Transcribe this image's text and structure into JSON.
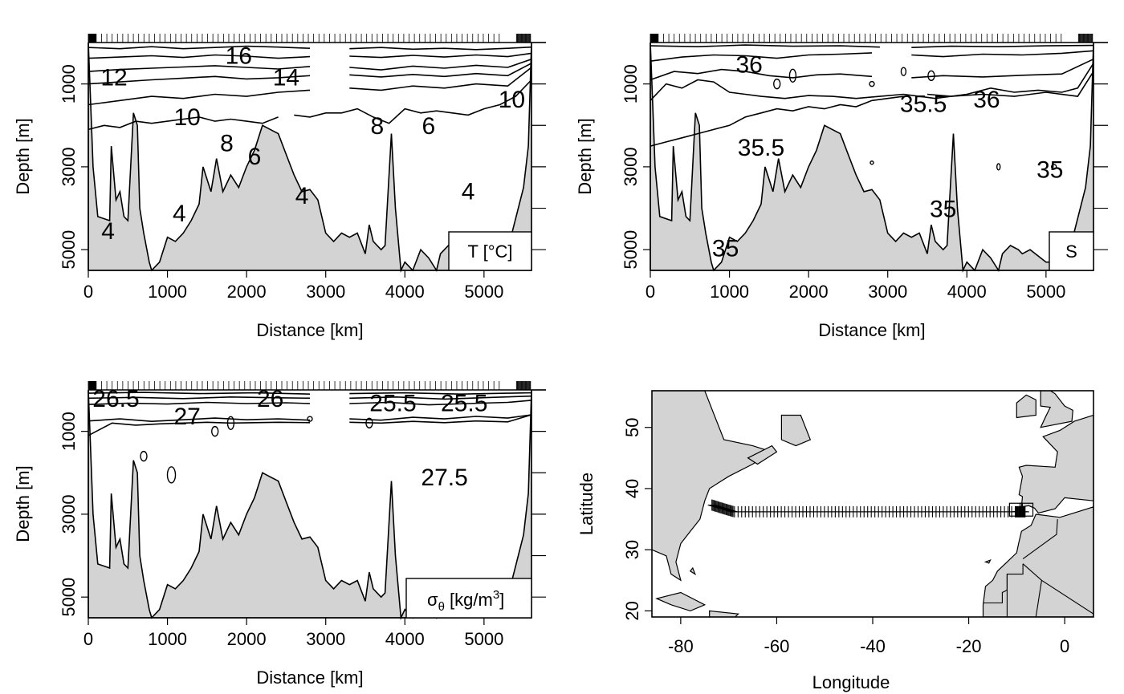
{
  "chart_data": [
    {
      "id": "temperature",
      "type": "contour-section",
      "xlabel": "Distance [km]",
      "ylabel": "Depth [m]",
      "xlim": [
        0,
        5600
      ],
      "ylim": [
        5500,
        0
      ],
      "x_ticks": [
        0,
        1000,
        2000,
        3000,
        4000,
        5000
      ],
      "y_ticks": [
        1000,
        3000,
        5000
      ],
      "legend": "T [°C]",
      "contour_labels": [
        {
          "text": "12",
          "x": 650,
          "y": 400
        },
        {
          "text": "16",
          "x": 3800,
          "y": 150
        },
        {
          "text": "14",
          "x": 5000,
          "y": 400
        },
        {
          "text": "10",
          "x": 2500,
          "y": 850
        },
        {
          "text": "8",
          "x": 3500,
          "y": 1150
        },
        {
          "text": "6",
          "x": 4200,
          "y": 1300
        },
        {
          "text": "8",
          "x": 7300,
          "y": 950
        },
        {
          "text": "6",
          "x": 8600,
          "y": 950
        },
        {
          "text": "10",
          "x": 10700,
          "y": 650
        },
        {
          "text": "4",
          "x": 500,
          "y": 2150
        },
        {
          "text": "4",
          "x": 2300,
          "y": 1950
        },
        {
          "text": "4",
          "x": 5400,
          "y": 1750
        },
        {
          "text": "4",
          "x": 9600,
          "y": 1700
        }
      ]
    },
    {
      "id": "salinity",
      "type": "contour-section",
      "xlabel": "Distance [km]",
      "ylabel": "Depth [m]",
      "xlim": [
        0,
        5600
      ],
      "ylim": [
        5500,
        0
      ],
      "x_ticks": [
        0,
        1000,
        2000,
        3000,
        4000,
        5000
      ],
      "y_ticks": [
        1000,
        3000,
        5000
      ],
      "legend": "S",
      "contour_labels": [
        {
          "text": "36",
          "x": 2500,
          "y": 250
        },
        {
          "text": "35.5",
          "x": 6900,
          "y": 700
        },
        {
          "text": "36",
          "x": 8500,
          "y": 650
        },
        {
          "text": "35.5",
          "x": 2800,
          "y": 1200
        },
        {
          "text": "35",
          "x": 10100,
          "y": 1450
        },
        {
          "text": "35",
          "x": 7400,
          "y": 1900
        },
        {
          "text": "35",
          "x": 1900,
          "y": 2350
        }
      ]
    },
    {
      "id": "density",
      "type": "contour-section",
      "xlabel": "Distance [km]",
      "ylabel": "Depth [m]",
      "xlim": [
        0,
        5600
      ],
      "ylim": [
        5500,
        0
      ],
      "x_ticks": [
        0,
        1000,
        2000,
        3000,
        4000,
        5000
      ],
      "y_ticks": [
        1000,
        3000,
        5000
      ],
      "legend_symbol": "σ",
      "legend_subscript": "θ",
      "legend_units": "[kg/m",
      "legend_superscript": "3",
      "legend_close": "]",
      "contour_labels": [
        {
          "text": "26.5",
          "x": 700,
          "y": 100
        },
        {
          "text": "27",
          "x": 2500,
          "y": 300
        },
        {
          "text": "26",
          "x": 4600,
          "y": 100
        },
        {
          "text": "25.5",
          "x": 7700,
          "y": 150
        },
        {
          "text": "25.5",
          "x": 9500,
          "y": 150
        },
        {
          "text": "27.5",
          "x": 9000,
          "y": 1000
        }
      ]
    },
    {
      "id": "map",
      "type": "map",
      "xlabel": "Longitude",
      "ylabel": "Latitude",
      "xlim": [
        -86,
        6
      ],
      "ylim": [
        19,
        56
      ],
      "x_ticks": [
        -80,
        -60,
        -40,
        -20,
        0
      ],
      "y_ticks": [
        20,
        30,
        40,
        50
      ],
      "station_latitude": 36.2,
      "station_lon_start": -73.5,
      "station_lon_end": -8.2
    }
  ],
  "colors": {
    "land": "#d3d3d3",
    "line": "#000000",
    "background": "#ffffff"
  }
}
